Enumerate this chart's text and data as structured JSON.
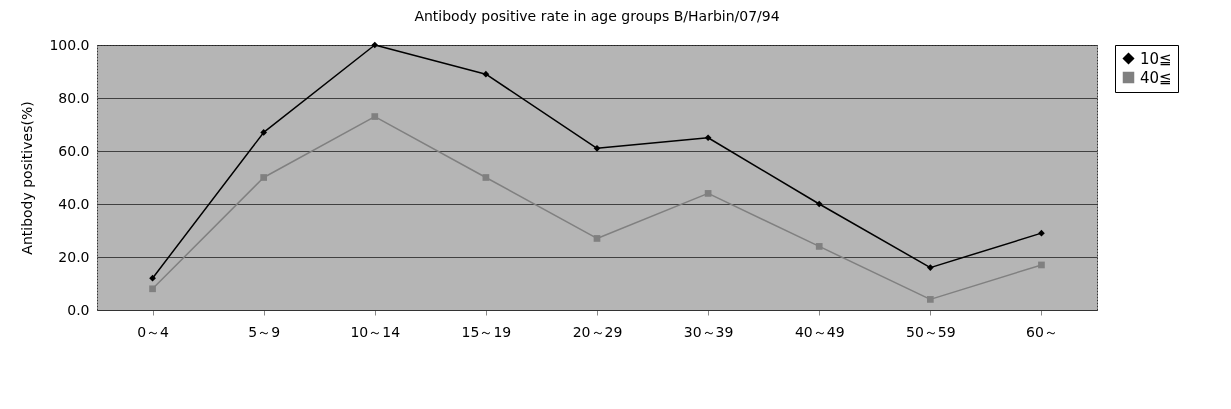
{
  "chart_data": {
    "type": "line",
    "title": "Antibody positive rate in age groups  B/Harbin/07/94",
    "ylabel": "Antibody positives(%)",
    "categories": [
      "0～4",
      "5～9",
      "10～14",
      "15～19",
      "20～29",
      "30～39",
      "40～49",
      "50～59",
      "60～"
    ],
    "series": [
      {
        "name": "10≦",
        "color": "#000000",
        "marker": "diamond",
        "values": [
          12,
          67,
          100,
          89,
          61,
          65,
          40,
          16,
          29
        ]
      },
      {
        "name": "40≦",
        "color": "#808080",
        "marker": "square",
        "values": [
          8,
          50,
          73,
          50,
          27,
          44,
          24,
          4,
          17
        ]
      }
    ],
    "ylim": [
      0,
      100
    ],
    "yticks": [
      {
        "value": 0,
        "label": "0.0"
      },
      {
        "value": 20,
        "label": "20.0"
      },
      {
        "value": 40,
        "label": "40.0"
      },
      {
        "value": 60,
        "label": "60.0"
      },
      {
        "value": 80,
        "label": "80.0"
      },
      {
        "value": 100,
        "label": "100.0"
      }
    ],
    "grid": "y",
    "legend": "right",
    "line_style": "solid"
  }
}
